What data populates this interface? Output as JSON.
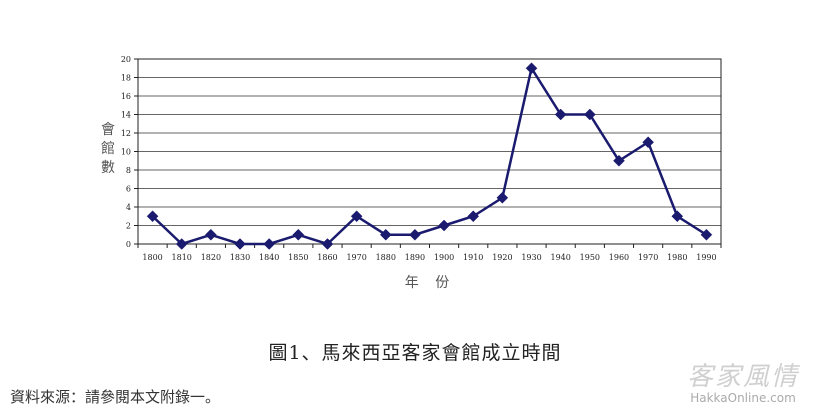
{
  "chart_data": {
    "type": "line",
    "categories": [
      "1800",
      "1810",
      "1820",
      "1830",
      "1840",
      "1850",
      "1860",
      "1970",
      "1880",
      "1890",
      "1900",
      "1910",
      "1920",
      "1930",
      "1940",
      "1950",
      "1960",
      "1970",
      "1980",
      "1990"
    ],
    "values": [
      3,
      0,
      1,
      0,
      0,
      1,
      0,
      3,
      1,
      1,
      2,
      3,
      5,
      19,
      14,
      14,
      9,
      11,
      3,
      1
    ],
    "ylim": [
      0,
      20
    ],
    "yticks": [
      0,
      2,
      4,
      6,
      8,
      10,
      12,
      14,
      16,
      18,
      20
    ],
    "ylabel": "會館數",
    "xlabel": "年 份",
    "grid": true,
    "line_color": "#1a1a6e"
  },
  "caption": "圖1、馬來西亞客家會館成立時間",
  "source": "資料來源：請參閱本文附錄一。",
  "watermark": {
    "chinese": "客家風情",
    "url": "HakkaOnline.com"
  }
}
